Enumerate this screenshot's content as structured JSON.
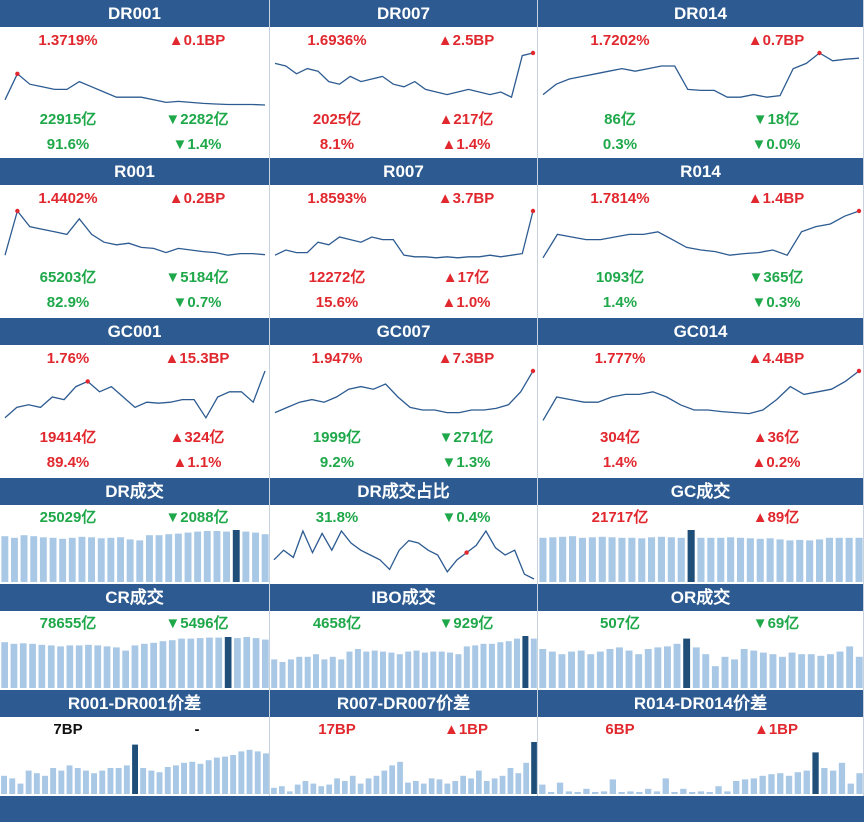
{
  "colors": {
    "header_bg": "#2d5b91",
    "up": "#e0282e",
    "down": "#1fa84a",
    "line": "#2d5b91",
    "bar": "#a8c8e6",
    "bar_highlight": "#1f4e79",
    "point": "#e0282e"
  },
  "panels": [
    {
      "id": "DR001",
      "title": "DR001",
      "rate": "1.3719%",
      "rate_dir": "up",
      "rate_change": "▲0.1BP",
      "rate_change_dir": "up",
      "volume": "22915亿",
      "volume_dir": "down",
      "volume_change": "▼2282亿",
      "volume_change_dir": "down",
      "share": "91.6%",
      "share_dir": "down",
      "share_change": "▼1.4%",
      "share_change_dir": "down"
    },
    {
      "id": "DR007",
      "title": "DR007",
      "rate": "1.6936%",
      "rate_dir": "up",
      "rate_change": "▲2.5BP",
      "rate_change_dir": "up",
      "volume": "2025亿",
      "volume_dir": "up",
      "volume_change": "▲217亿",
      "volume_change_dir": "up",
      "share": "8.1%",
      "share_dir": "up",
      "share_change": "▲1.4%",
      "share_change_dir": "up"
    },
    {
      "id": "DR014",
      "title": "DR014",
      "rate": "1.7202%",
      "rate_dir": "up",
      "rate_change": "▲0.7BP",
      "rate_change_dir": "up",
      "volume": "86亿",
      "volume_dir": "down",
      "volume_change": "▼18亿",
      "volume_change_dir": "down",
      "share": "0.3%",
      "share_dir": "down",
      "share_change": "▼0.0%",
      "share_change_dir": "down"
    },
    {
      "id": "R001",
      "title": "R001",
      "rate": "1.4402%",
      "rate_dir": "up",
      "rate_change": "▲0.2BP",
      "rate_change_dir": "up",
      "volume": "65203亿",
      "volume_dir": "down",
      "volume_change": "▼5184亿",
      "volume_change_dir": "down",
      "share": "82.9%",
      "share_dir": "down",
      "share_change": "▼0.7%",
      "share_change_dir": "down"
    },
    {
      "id": "R007",
      "title": "R007",
      "rate": "1.8593%",
      "rate_dir": "up",
      "rate_change": "▲3.7BP",
      "rate_change_dir": "up",
      "volume": "12272亿",
      "volume_dir": "up",
      "volume_change": "▲17亿",
      "volume_change_dir": "up",
      "share": "15.6%",
      "share_dir": "up",
      "share_change": "▲1.0%",
      "share_change_dir": "up"
    },
    {
      "id": "R014",
      "title": "R014",
      "rate": "1.7814%",
      "rate_dir": "up",
      "rate_change": "▲1.4BP",
      "rate_change_dir": "up",
      "volume": "1093亿",
      "volume_dir": "down",
      "volume_change": "▼365亿",
      "volume_change_dir": "down",
      "share": "1.4%",
      "share_dir": "down",
      "share_change": "▼0.3%",
      "share_change_dir": "down"
    },
    {
      "id": "GC001",
      "title": "GC001",
      "rate": "1.76%",
      "rate_dir": "up",
      "rate_change": "▲15.3BP",
      "rate_change_dir": "up",
      "volume": "19414亿",
      "volume_dir": "up",
      "volume_change": "▲324亿",
      "volume_change_dir": "up",
      "share": "89.4%",
      "share_dir": "up",
      "share_change": "▲1.1%",
      "share_change_dir": "up"
    },
    {
      "id": "GC007",
      "title": "GC007",
      "rate": "1.947%",
      "rate_dir": "up",
      "rate_change": "▲7.3BP",
      "rate_change_dir": "up",
      "volume": "1999亿",
      "volume_dir": "down",
      "volume_change": "▼271亿",
      "volume_change_dir": "down",
      "share": "9.2%",
      "share_dir": "down",
      "share_change": "▼1.3%",
      "share_change_dir": "down"
    },
    {
      "id": "GC014",
      "title": "GC014",
      "rate": "1.777%",
      "rate_dir": "up",
      "rate_change": "▲4.4BP",
      "rate_change_dir": "up",
      "volume": "304亿",
      "volume_dir": "up",
      "volume_change": "▲36亿",
      "volume_change_dir": "up",
      "share": "1.4%",
      "share_dir": "up",
      "share_change": "▲0.2%",
      "share_change_dir": "up"
    },
    {
      "id": "DR_volume",
      "title": "DR成交",
      "value": "25029亿",
      "value_dir": "down",
      "change": "▼2088亿",
      "change_dir": "down"
    },
    {
      "id": "DR_volume_share",
      "title": "DR成交占比",
      "value": "31.8%",
      "value_dir": "down",
      "change": "▼0.4%",
      "change_dir": "down"
    },
    {
      "id": "GC_volume",
      "title": "GC成交",
      "value": "21717亿",
      "value_dir": "up",
      "change": "▲89亿",
      "change_dir": "up"
    },
    {
      "id": "CR_volume",
      "title": "CR成交",
      "value": "78655亿",
      "value_dir": "down",
      "change": "▼5496亿",
      "change_dir": "down"
    },
    {
      "id": "IBO_volume",
      "title": "IBO成交",
      "value": "4658亿",
      "value_dir": "down",
      "change": "▼929亿",
      "change_dir": "down"
    },
    {
      "id": "OR_volume",
      "title": "OR成交",
      "value": "507亿",
      "value_dir": "down",
      "change": "▼69亿",
      "change_dir": "down"
    },
    {
      "id": "R001_DR001_spread",
      "title": "R001-DR001价差",
      "value": "7BP",
      "value_dir": "neutral",
      "change": "-",
      "change_dir": "neutral"
    },
    {
      "id": "R007_DR007_spread",
      "title": "R007-DR007价差",
      "value": "17BP",
      "value_dir": "up",
      "change": "▲1BP",
      "change_dir": "up"
    },
    {
      "id": "R014_DR014_spread",
      "title": "R014-DR014价差",
      "value": "6BP",
      "value_dir": "up",
      "change": "▲1BP",
      "change_dir": "up"
    }
  ],
  "chart_data": [
    {
      "type": "line",
      "panel": "DR001",
      "values": [
        0.9,
        0.4,
        0.6,
        0.65,
        0.7,
        0.7,
        0.55,
        0.65,
        0.75,
        0.85,
        0.85,
        0.85,
        0.9,
        0.95,
        0.93,
        0.95,
        0.97,
        0.98,
        0.99,
        0.99,
        0.99,
        1.0
      ],
      "highlight_index": 1
    },
    {
      "type": "line",
      "panel": "DR007",
      "values": [
        0.2,
        0.25,
        0.4,
        0.3,
        0.35,
        0.55,
        0.6,
        0.45,
        0.55,
        0.5,
        0.45,
        0.6,
        0.65,
        0.55,
        0.7,
        0.75,
        0.8,
        0.75,
        0.7,
        0.75,
        0.8,
        0.75,
        0.85,
        0.05,
        0.0
      ],
      "highlight_index": 24
    },
    {
      "type": "line",
      "panel": "DR014",
      "values": [
        0.8,
        0.6,
        0.5,
        0.45,
        0.4,
        0.35,
        0.3,
        0.35,
        0.3,
        0.25,
        0.25,
        0.7,
        0.72,
        0.72,
        0.85,
        0.85,
        0.8,
        0.85,
        0.82,
        0.3,
        0.2,
        0.0,
        0.15,
        0.12,
        0.1
      ],
      "highlight_index": 21
    },
    {
      "type": "line",
      "panel": "R001",
      "values": [
        0.85,
        0.0,
        0.3,
        0.35,
        0.4,
        0.45,
        0.15,
        0.45,
        0.6,
        0.65,
        0.62,
        0.7,
        0.72,
        0.8,
        0.72,
        0.75,
        0.78,
        0.8,
        0.85,
        0.82,
        0.82,
        0.84
      ],
      "highlight_index": 1
    },
    {
      "type": "line",
      "panel": "R007",
      "values": [
        0.85,
        0.75,
        0.8,
        0.8,
        0.6,
        0.65,
        0.5,
        0.55,
        0.6,
        0.5,
        0.55,
        0.55,
        0.85,
        0.88,
        0.88,
        0.9,
        0.88,
        0.9,
        0.88,
        0.88,
        0.85,
        0.88,
        0.85,
        0.82,
        0.0
      ],
      "highlight_index": 24
    },
    {
      "type": "line",
      "panel": "R014",
      "values": [
        0.9,
        0.45,
        0.5,
        0.55,
        0.55,
        0.5,
        0.45,
        0.45,
        0.4,
        0.55,
        0.7,
        0.75,
        0.78,
        0.85,
        0.82,
        0.8,
        0.75,
        0.85,
        0.4,
        0.3,
        0.25,
        0.1,
        0.0
      ],
      "highlight_index": 22
    },
    {
      "type": "line",
      "panel": "GC001",
      "values": [
        0.9,
        0.7,
        0.65,
        0.7,
        0.5,
        0.55,
        0.3,
        0.2,
        0.4,
        0.3,
        0.5,
        0.7,
        0.6,
        0.62,
        0.6,
        0.55,
        0.55,
        0.9,
        0.5,
        0.4,
        0.4,
        0.6,
        0.0
      ],
      "highlight_index": 7
    },
    {
      "type": "line",
      "panel": "GC007",
      "values": [
        0.8,
        0.7,
        0.6,
        0.55,
        0.6,
        0.5,
        0.35,
        0.3,
        0.35,
        0.25,
        0.5,
        0.7,
        0.75,
        0.75,
        0.8,
        0.8,
        0.75,
        0.75,
        0.72,
        0.65,
        0.4,
        0.0
      ],
      "highlight_index": 21
    },
    {
      "type": "line",
      "panel": "GC014",
      "values": [
        0.95,
        0.5,
        0.55,
        0.6,
        0.6,
        0.5,
        0.45,
        0.45,
        0.4,
        0.5,
        0.65,
        0.75,
        0.75,
        0.78,
        0.8,
        0.82,
        0.75,
        0.55,
        0.3,
        0.45,
        0.4,
        0.35,
        0.2,
        0.0
      ],
      "highlight_index": 23
    },
    {
      "type": "bar",
      "panel": "DR_volume",
      "values": [
        0.88,
        0.85,
        0.9,
        0.88,
        0.86,
        0.85,
        0.83,
        0.85,
        0.87,
        0.86,
        0.84,
        0.85,
        0.86,
        0.82,
        0.8,
        0.9,
        0.9,
        0.92,
        0.93,
        0.95,
        0.97,
        0.98,
        0.98,
        0.97,
        1.0,
        0.97,
        0.95,
        0.92
      ],
      "highlight_index": 24
    },
    {
      "type": "line",
      "panel": "DR_volume_share",
      "values": [
        0.6,
        0.4,
        0.55,
        0.0,
        0.45,
        0.05,
        0.4,
        0.0,
        0.25,
        0.4,
        0.5,
        0.6,
        0.8,
        0.4,
        0.2,
        0.25,
        0.4,
        0.5,
        0.85,
        0.6,
        0.45,
        0.3,
        0.0,
        0.35,
        0.5,
        0.4,
        0.9,
        1.0
      ],
      "highlight_index": 20
    },
    {
      "type": "bar",
      "panel": "GC_volume",
      "values": [
        0.85,
        0.86,
        0.87,
        0.88,
        0.85,
        0.86,
        0.87,
        0.86,
        0.85,
        0.85,
        0.84,
        0.86,
        0.87,
        0.86,
        0.85,
        1.0,
        0.85,
        0.85,
        0.85,
        0.86,
        0.85,
        0.84,
        0.83,
        0.84,
        0.82,
        0.8,
        0.81,
        0.8,
        0.82,
        0.85,
        0.85,
        0.85,
        0.85
      ],
      "highlight_index": 15
    },
    {
      "type": "bar",
      "panel": "CR_volume",
      "values": [
        0.88,
        0.85,
        0.86,
        0.85,
        0.83,
        0.82,
        0.8,
        0.82,
        0.82,
        0.83,
        0.82,
        0.8,
        0.78,
        0.72,
        0.82,
        0.85,
        0.87,
        0.9,
        0.92,
        0.95,
        0.95,
        0.96,
        0.97,
        0.97,
        0.98,
        0.96,
        0.98,
        0.96,
        0.93
      ],
      "highlight_index": 24
    },
    {
      "type": "bar",
      "panel": "IBO_volume",
      "values": [
        0.55,
        0.5,
        0.55,
        0.6,
        0.6,
        0.65,
        0.55,
        0.6,
        0.55,
        0.7,
        0.75,
        0.7,
        0.72,
        0.7,
        0.68,
        0.65,
        0.7,
        0.72,
        0.68,
        0.7,
        0.7,
        0.68,
        0.65,
        0.8,
        0.82,
        0.85,
        0.85,
        0.88,
        0.9,
        0.95,
        1.0,
        0.95
      ],
      "highlight_index": 30
    },
    {
      "type": "bar",
      "panel": "OR_volume",
      "values": [
        0.75,
        0.7,
        0.65,
        0.7,
        0.72,
        0.65,
        0.7,
        0.75,
        0.78,
        0.72,
        0.65,
        0.75,
        0.78,
        0.8,
        0.85,
        0.95,
        0.78,
        0.65,
        0.42,
        0.6,
        0.55,
        0.75,
        0.72,
        0.68,
        0.65,
        0.6,
        0.68,
        0.65,
        0.65,
        0.62,
        0.65,
        0.7,
        0.8,
        0.6
      ],
      "highlight_index": 15
    },
    {
      "type": "bar",
      "panel": "R001_DR001_spread",
      "values": [
        0.35,
        0.3,
        0.2,
        0.45,
        0.4,
        0.35,
        0.5,
        0.45,
        0.55,
        0.5,
        0.45,
        0.4,
        0.45,
        0.5,
        0.5,
        0.55,
        0.95,
        0.5,
        0.45,
        0.42,
        0.52,
        0.55,
        0.6,
        0.62,
        0.58,
        0.65,
        0.7,
        0.72,
        0.75,
        0.82,
        0.85,
        0.82,
        0.78
      ],
      "highlight_index": 16
    },
    {
      "type": "bar",
      "panel": "R007_DR007_spread",
      "values": [
        0.12,
        0.15,
        0.05,
        0.18,
        0.25,
        0.2,
        0.15,
        0.18,
        0.3,
        0.25,
        0.35,
        0.2,
        0.3,
        0.35,
        0.45,
        0.55,
        0.62,
        0.22,
        0.25,
        0.2,
        0.3,
        0.28,
        0.2,
        0.25,
        0.35,
        0.3,
        0.45,
        0.25,
        0.3,
        0.35,
        0.5,
        0.4,
        0.6,
        1.0
      ],
      "highlight_index": 33
    },
    {
      "type": "bar",
      "panel": "R014_DR014_spread",
      "values": [
        0.18,
        0.0,
        0.22,
        0.05,
        0.0,
        0.1,
        0.0,
        0.05,
        0.28,
        0.0,
        0.05,
        0.0,
        0.1,
        0.05,
        0.3,
        0.0,
        0.1,
        0.0,
        0.05,
        0.0,
        0.15,
        0.05,
        0.25,
        0.28,
        0.3,
        0.35,
        0.38,
        0.4,
        0.35,
        0.42,
        0.45,
        0.8,
        0.5,
        0.45,
        0.6,
        0.2,
        0.4
      ],
      "highlight_index": 31
    }
  ]
}
